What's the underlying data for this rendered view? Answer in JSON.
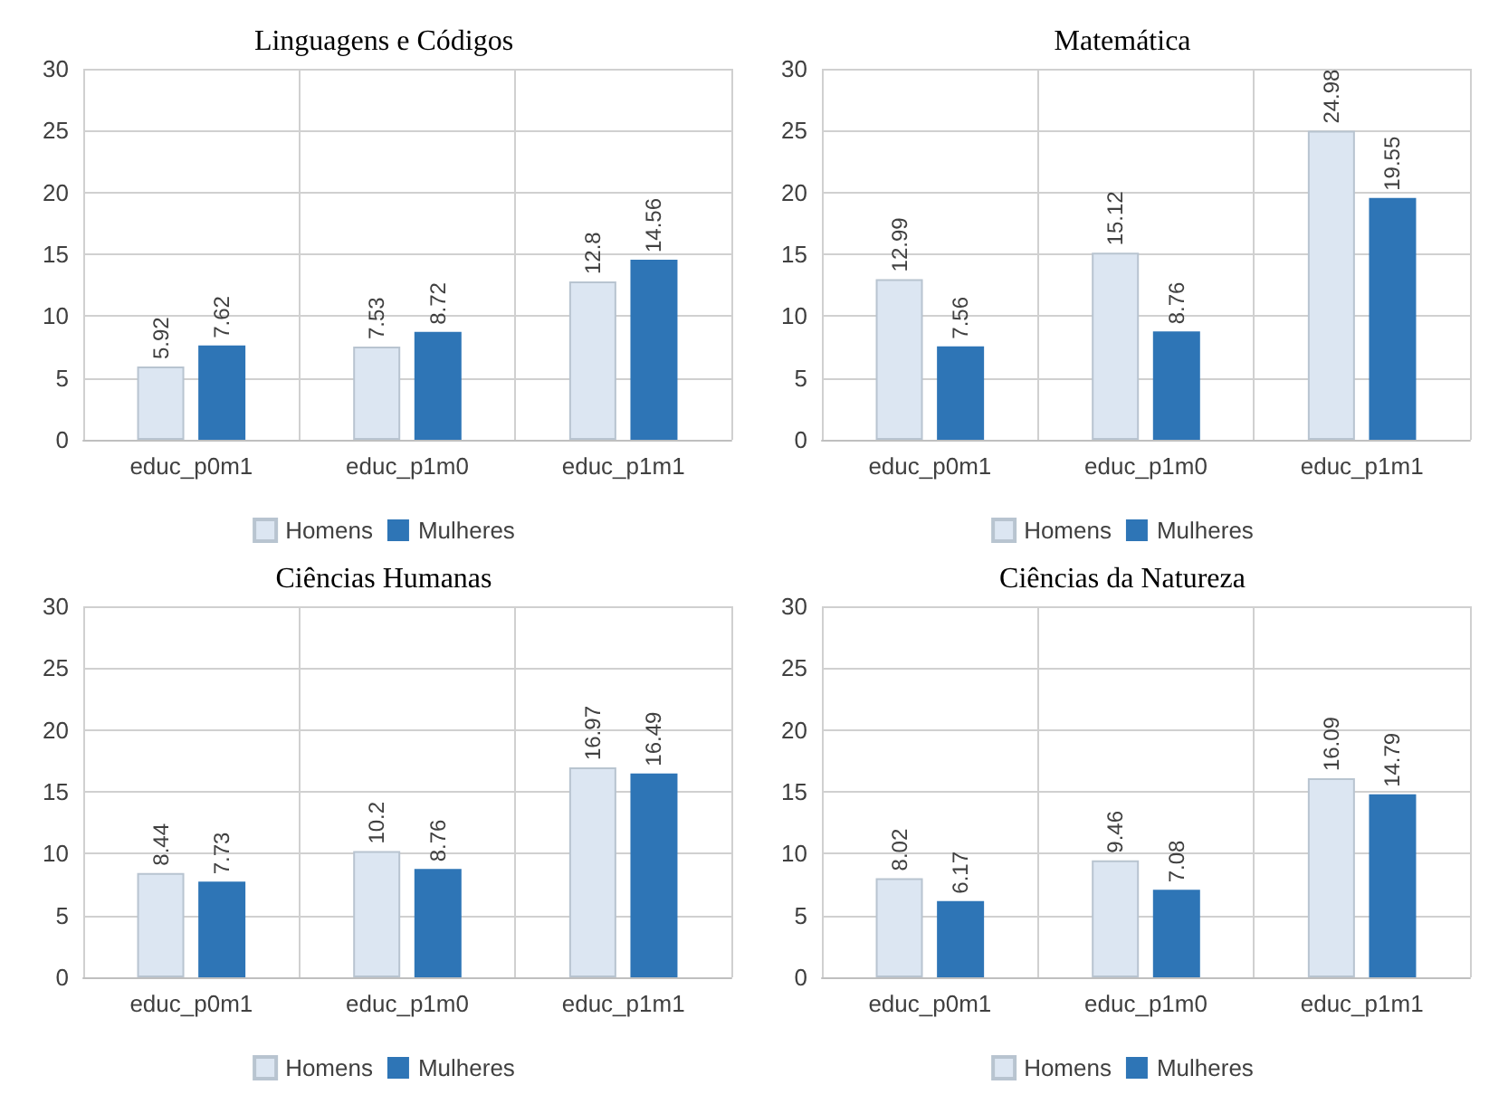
{
  "chart_data": [
    {
      "type": "bar",
      "title": "Linguagens e Códigos",
      "categories": [
        "educ_p0m1",
        "educ_p1m0",
        "educ_p1m1"
      ],
      "series": [
        {
          "name": "Homens",
          "color": "#dce6f2",
          "values": [
            5.92,
            7.53,
            12.8
          ]
        },
        {
          "name": "Mulheres",
          "color": "#2e75b6",
          "values": [
            7.62,
            8.72,
            14.56
          ]
        }
      ],
      "ylim": [
        0,
        30
      ],
      "yticks": [
        0,
        5,
        10,
        15,
        20,
        25,
        30
      ],
      "grid": true,
      "legend": "bottom",
      "data_labels": true
    },
    {
      "type": "bar",
      "title": "Matemática",
      "categories": [
        "educ_p0m1",
        "educ_p1m0",
        "educ_p1m1"
      ],
      "series": [
        {
          "name": "Homens",
          "color": "#dce6f2",
          "values": [
            12.99,
            15.12,
            24.98
          ]
        },
        {
          "name": "Mulheres",
          "color": "#2e75b6",
          "values": [
            7.56,
            8.76,
            19.55
          ]
        }
      ],
      "ylim": [
        0,
        30
      ],
      "yticks": [
        0,
        5,
        10,
        15,
        20,
        25,
        30
      ],
      "grid": true,
      "legend": "bottom",
      "data_labels": true
    },
    {
      "type": "bar",
      "title": "Ciências Humanas",
      "categories": [
        "educ_p0m1",
        "educ_p1m0",
        "educ_p1m1"
      ],
      "series": [
        {
          "name": "Homens",
          "color": "#dce6f2",
          "values": [
            8.44,
            10.2,
            16.97
          ]
        },
        {
          "name": "Mulheres",
          "color": "#2e75b6",
          "values": [
            7.73,
            8.76,
            16.49
          ]
        }
      ],
      "ylim": [
        0,
        30
      ],
      "yticks": [
        0,
        5,
        10,
        15,
        20,
        25,
        30
      ],
      "grid": true,
      "legend": "bottom",
      "data_labels": true
    },
    {
      "type": "bar",
      "title": "Ciências da Natureza",
      "categories": [
        "educ_p0m1",
        "educ_p1m0",
        "educ_p1m1"
      ],
      "series": [
        {
          "name": "Homens",
          "color": "#dce6f2",
          "values": [
            8.02,
            9.46,
            16.09
          ]
        },
        {
          "name": "Mulheres",
          "color": "#2e75b6",
          "values": [
            6.17,
            7.08,
            14.79
          ]
        }
      ],
      "ylim": [
        0,
        30
      ],
      "yticks": [
        0,
        5,
        10,
        15,
        20,
        25,
        30
      ],
      "grid": true,
      "legend": "bottom",
      "data_labels": true
    }
  ]
}
